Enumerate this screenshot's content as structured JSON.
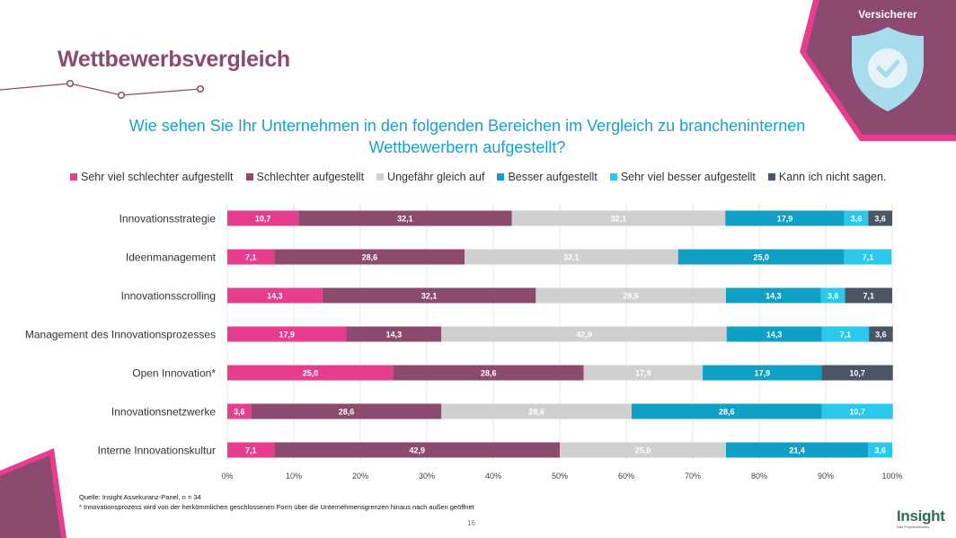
{
  "header": {
    "title": "Wettbewerbsvergleich",
    "corner_label": "Versicherer",
    "corner_icon": "shield-check-icon"
  },
  "colors": {
    "brand_purple": "#8b4a6e",
    "accent_pink": "#e73d8e",
    "question_blue": "#17a3c9"
  },
  "chart_data": {
    "type": "bar",
    "orientation": "horizontal",
    "stacked": true,
    "title": "Wie sehen Sie Ihr Unternehmen in den folgenden Bereichen im Vergleich zu brancheninternen Wettbewerbern aufgestellt?",
    "categories": [
      "Innovationsstrategie",
      "Ideenmanagement",
      "Innovationsscrolling",
      "Management des Innovationsprozesses",
      "Open Innovation*",
      "Innovationsnetzwerke",
      "Interne Innovationskultur"
    ],
    "series": [
      {
        "name": "Sehr viel schlechter aufgestellt",
        "color": "#e73d8e",
        "values": [
          10.7,
          7.1,
          14.3,
          17.9,
          25.0,
          3.6,
          7.1
        ]
      },
      {
        "name": "Schlechter aufgestellt",
        "color": "#8b4a6e",
        "values": [
          32.1,
          28.6,
          32.1,
          14.3,
          28.6,
          28.6,
          42.9
        ]
      },
      {
        "name": "Ungefähr gleich auf",
        "color": "#d0d0d0",
        "values": [
          32.1,
          32.1,
          28.6,
          42.9,
          17.9,
          28.6,
          25.0
        ]
      },
      {
        "name": "Besser aufgestellt",
        "color": "#11a0c5",
        "values": [
          17.9,
          25.0,
          14.3,
          14.3,
          17.9,
          28.6,
          21.4
        ]
      },
      {
        "name": "Sehr viel besser aufgestellt",
        "color": "#29c8ec",
        "values": [
          3.6,
          7.1,
          3.6,
          7.1,
          0,
          10.7,
          3.6
        ]
      },
      {
        "name": "Kann ich nicht sagen.",
        "color": "#4a5566",
        "values": [
          3.6,
          0,
          7.1,
          3.6,
          10.7,
          0,
          0
        ]
      }
    ],
    "data_labels": [
      [
        "10,7",
        "32,1",
        "32,1",
        "17,9",
        "3,6",
        "3,6"
      ],
      [
        "7,1",
        "28,6",
        "32,1",
        "25,0",
        "7,1",
        ""
      ],
      [
        "14,3",
        "32,1",
        "28,6",
        "14,3",
        "3,6",
        "7,1"
      ],
      [
        "17,9",
        "14,3",
        "42,9",
        "14,3",
        "7,1",
        "3,6"
      ],
      [
        "25,0",
        "28,6",
        "17,9",
        "17,9",
        "",
        "10,7"
      ],
      [
        "3,6",
        "28,6",
        "28,6",
        "28,6",
        "10,7",
        ""
      ],
      [
        "7,1",
        "42,9",
        "25,0",
        "21,4",
        "3,6",
        ""
      ]
    ],
    "x_ticks": [
      "0%",
      "10%",
      "20%",
      "30%",
      "40%",
      "50%",
      "60%",
      "70%",
      "80%",
      "90%",
      "100%"
    ],
    "xlim": [
      0,
      100
    ],
    "grid": true,
    "legend": "top"
  },
  "footer": {
    "source": "Quelle: Insight Assekuranz-Panel, n = 34",
    "footnote": "* Innovationsprozess wird von der herkömmlichen geschlossenen Form über die Unternehmensgrenzen hinaus nach außen geöffnet",
    "page_number": "16",
    "logo": "Insight",
    "logo_subtitle": "Das Projektnetzwerk"
  }
}
